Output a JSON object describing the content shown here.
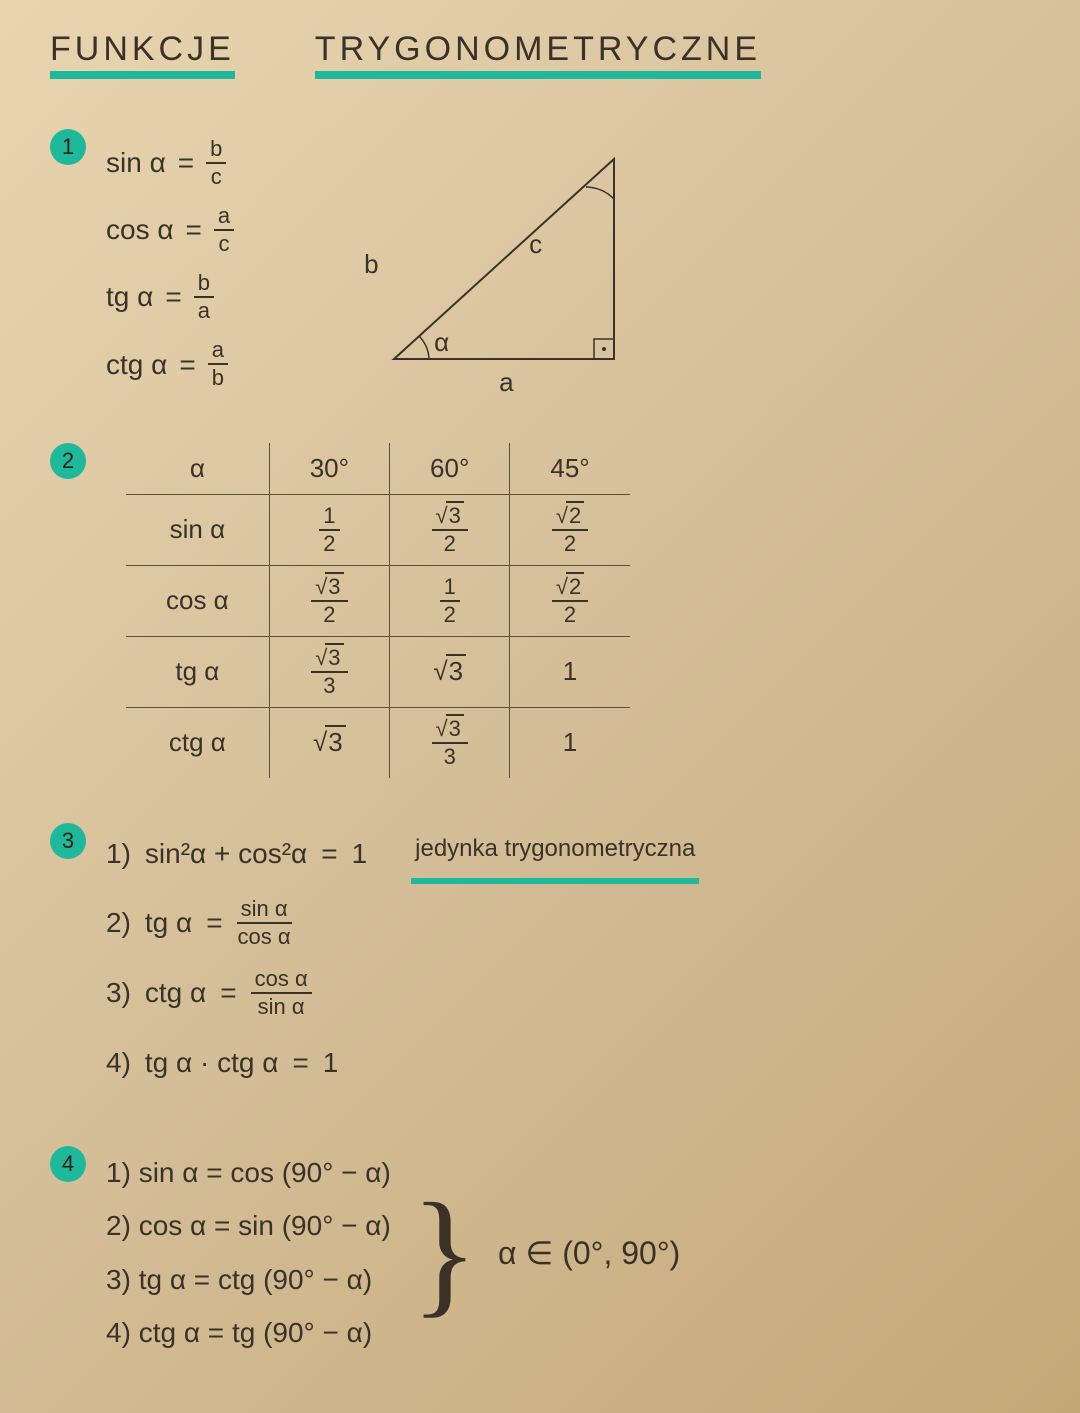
{
  "title": {
    "word1": "Funkcje",
    "word2": "Trygonometryczne"
  },
  "colors": {
    "highlight": "#1fb89a",
    "ink": "#3a3228",
    "paper_light": "#e8d5b0",
    "paper_dark": "#c5a878"
  },
  "section1": {
    "bullet": "1",
    "defs": [
      {
        "fn": "sin α",
        "eq": "=",
        "num": "b",
        "den": "c"
      },
      {
        "fn": "cos α",
        "eq": "=",
        "num": "a",
        "den": "c"
      },
      {
        "fn": "tg α",
        "eq": "=",
        "num": "b",
        "den": "a"
      },
      {
        "fn": "ctg α",
        "eq": "=",
        "num": "a",
        "den": "b"
      }
    ],
    "triangle": {
      "side_b": "b",
      "side_a": "a",
      "side_c": "c",
      "angle": "α"
    }
  },
  "section2": {
    "bullet": "2",
    "headers": [
      "α",
      "30°",
      "60°",
      "45°"
    ],
    "rows": [
      {
        "label": "sin α",
        "cells": [
          {
            "type": "frac",
            "num": "1",
            "den": "2"
          },
          {
            "type": "frac-sqrt",
            "rad": "3",
            "den": "2"
          },
          {
            "type": "frac-sqrt",
            "rad": "2",
            "den": "2"
          }
        ]
      },
      {
        "label": "cos α",
        "cells": [
          {
            "type": "frac-sqrt",
            "rad": "3",
            "den": "2"
          },
          {
            "type": "frac",
            "num": "1",
            "den": "2"
          },
          {
            "type": "frac-sqrt",
            "rad": "2",
            "den": "2"
          }
        ]
      },
      {
        "label": "tg α",
        "cells": [
          {
            "type": "frac-sqrt",
            "rad": "3",
            "den": "3"
          },
          {
            "type": "sqrt",
            "rad": "3"
          },
          {
            "type": "text",
            "val": "1"
          }
        ]
      },
      {
        "label": "ctg α",
        "cells": [
          {
            "type": "sqrt",
            "rad": "3"
          },
          {
            "type": "frac-sqrt",
            "rad": "3",
            "den": "3"
          },
          {
            "type": "text",
            "val": "1"
          }
        ]
      }
    ]
  },
  "section3": {
    "bullet": "3",
    "lines": [
      {
        "n": "1)",
        "lhs": "sin²α + cos²α",
        "eq": "=",
        "rhs": "1",
        "note": "jedynka trygonometryczna"
      },
      {
        "n": "2)",
        "lhs": "tg α",
        "eq": "=",
        "frac": {
          "num": "sin α",
          "den": "cos α"
        }
      },
      {
        "n": "3)",
        "lhs": "ctg α",
        "eq": "=",
        "frac": {
          "num": "cos α",
          "den": "sin α"
        }
      },
      {
        "n": "4)",
        "lhs": "tg α · ctg α",
        "eq": "=",
        "rhs": "1"
      }
    ]
  },
  "section4": {
    "bullet": "4",
    "lines": [
      {
        "n": "1)",
        "lhs": "sin α",
        "eq": "=",
        "rhs": "cos (90° − α)"
      },
      {
        "n": "2)",
        "lhs": "cos α",
        "eq": "=",
        "rhs": "sin (90° − α)"
      },
      {
        "n": "3)",
        "lhs": "tg α",
        "eq": "=",
        "rhs": "ctg (90° − α)"
      },
      {
        "n": "4)",
        "lhs": "ctg α",
        "eq": "=",
        "rhs": "tg (90° − α)"
      }
    ],
    "domain": "α ∈ (0°, 90°)"
  }
}
